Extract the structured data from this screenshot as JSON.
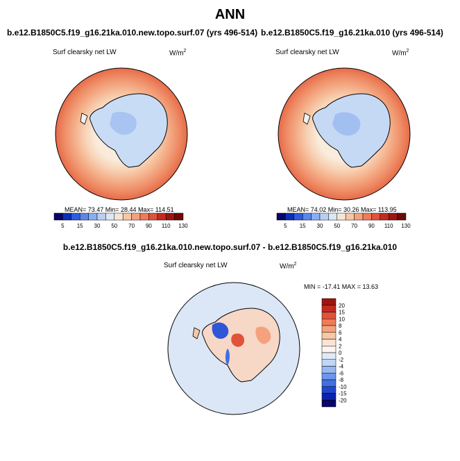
{
  "page_title": "ANN",
  "chart_data": [
    {
      "type": "heatmap",
      "projection": "south-polar-stereographic",
      "title": "b.e12.B1850C5.f19_g16.21ka.010.new.topo.surf.07 (yrs 496-514)",
      "variable": "Surf clearsky net LW",
      "units_base": "W/m",
      "units_exp": "2",
      "stats": {
        "mean": "73.47",
        "min": "28.44",
        "max": "114.51"
      },
      "stats_text": "MEAN=  73.47  Min=  28.44  Max=  114.51",
      "levels": [
        5,
        15,
        30,
        50,
        70,
        90,
        110,
        130
      ],
      "colorbar_labels": [
        "5",
        "15",
        "30",
        "50",
        "70",
        "90",
        "110",
        "130"
      ],
      "colorbar_colors": [
        "#06066b",
        "#0a2fb5",
        "#2e5ce0",
        "#5c86ee",
        "#88aef2",
        "#b8cff5",
        "#dce7f6",
        "#f7e4d4",
        "#f7c7a6",
        "#f4a27e",
        "#ef7b58",
        "#e0523a",
        "#c32a20",
        "#9e1510",
        "#6e0806"
      ]
    },
    {
      "type": "heatmap",
      "projection": "south-polar-stereographic",
      "title": "b.e12.B1850C5.f19_g16.21ka.010 (yrs 496-514)",
      "variable": "Surf clearsky net LW",
      "units_base": "W/m",
      "units_exp": "2",
      "stats": {
        "mean": "74.02",
        "min": "30.26",
        "max": "113.95"
      },
      "stats_text": "MEAN=  74.02  Min=  30.26  Max=  113.95",
      "levels": [
        5,
        15,
        30,
        50,
        70,
        90,
        110,
        130
      ],
      "colorbar_labels": [
        "5",
        "15",
        "30",
        "50",
        "70",
        "90",
        "110",
        "130"
      ],
      "colorbar_colors": [
        "#06066b",
        "#0a2fb5",
        "#2e5ce0",
        "#5c86ee",
        "#88aef2",
        "#b8cff5",
        "#dce7f6",
        "#f7e4d4",
        "#f7c7a6",
        "#f4a27e",
        "#ef7b58",
        "#e0523a",
        "#c32a20",
        "#9e1510",
        "#6e0806"
      ]
    },
    {
      "type": "heatmap",
      "projection": "south-polar-stereographic",
      "title": "b.e12.B1850C5.f19_g16.21ka.010.new.topo.surf.07 - b.e12.B1850C5.f19_g16.21ka.010",
      "variable": "Surf clearsky net LW",
      "units_base": "W/m",
      "units_exp": "2",
      "stats": {
        "min": "-17.41",
        "max": "13.63"
      },
      "stats_text": "MIN = -17.41  MAX =  13.63",
      "levels": [
        20,
        15,
        10,
        8,
        6,
        4,
        2,
        0,
        -2,
        -4,
        -6,
        -8,
        -10,
        -15,
        -20
      ],
      "colorbar_labels": [
        "20",
        "15",
        "10",
        "8",
        "6",
        "4",
        "2",
        "0",
        "-2",
        "-4",
        "-6",
        "-8",
        "-10",
        "-15",
        "-20"
      ],
      "colorbar_colors": [
        "#9e1510",
        "#c32a20",
        "#e0523a",
        "#ef7b58",
        "#f4a27e",
        "#f7c7a6",
        "#fbe3d6",
        "#fdf4ee",
        "#dfeaf8",
        "#c0d6f5",
        "#98b8f0",
        "#6e96ea",
        "#4170e2",
        "#1f46cf",
        "#0b23a8",
        "#06066b"
      ]
    }
  ]
}
